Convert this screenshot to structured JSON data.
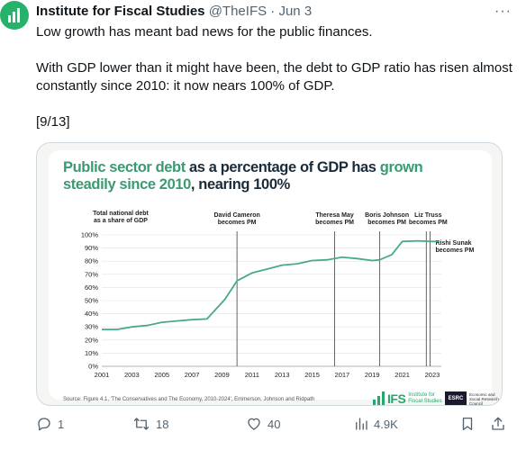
{
  "tweet": {
    "author_name": "Institute for Fiscal Studies",
    "handle": "@TheIFS",
    "separator": "·",
    "date": "Jun 3",
    "more_label": "···",
    "text_line1": "Low growth has meant bad news for the public finances.",
    "text_line2": "With GDP lower than it might have been, the debt to GDP ratio has risen almost constantly since 2010: it now nears 100% of GDP.",
    "text_line3": "[9/13]"
  },
  "card": {
    "title_part1": "Public sector debt",
    "title_part2": " as a percentage of GDP has ",
    "title_part3": "grown steadily since 2010",
    "title_part4": ", nearing 100%",
    "source": "Source: Figure 4.1, 'The Conservatives and The Economy, 2010-2024', Emmerson, Johnson and Ridpath",
    "ifs_logo_word": "IFS",
    "ifs_logo_sub1": "Institute for",
    "ifs_logo_sub2": "Fiscal Studies",
    "esrc_logo_word": "ESRC",
    "esrc_logo_sub": "Economic and Social Research Council"
  },
  "chart_data": {
    "type": "line",
    "title": "Public sector debt as a percentage of GDP has grown steadily since 2010, nearing 100%",
    "ylabel": "Total national debt as a share of GDP",
    "xlabel": "",
    "xlim": [
      2001,
      2023.6
    ],
    "ylim": [
      0,
      100
    ],
    "x_ticks": [
      "2001",
      "2003",
      "2005",
      "2007",
      "2009",
      "2011",
      "2013",
      "2015",
      "2017",
      "2019",
      "2021",
      "2023"
    ],
    "y_ticks": [
      "0%",
      "10%",
      "20%",
      "30%",
      "40%",
      "50%",
      "60%",
      "70%",
      "80%",
      "90%",
      "100%"
    ],
    "grid": true,
    "color": "#4aaa85",
    "series": [
      {
        "x": [
          2001,
          2002,
          2003,
          2004,
          2005,
          2006,
          2007,
          2008,
          2009.2,
          2010,
          2011,
          2012,
          2013,
          2014,
          2015,
          2016,
          2017,
          2018,
          2019,
          2019.5,
          2020.3,
          2021,
          2022,
          2023,
          2023.5
        ],
        "y": [
          28,
          28,
          30,
          31,
          33.5,
          34.5,
          35.5,
          36,
          51,
          65,
          71,
          74,
          77,
          78,
          80.5,
          81,
          83,
          82,
          80.5,
          81,
          85,
          95,
          95.5,
          95,
          95
        ]
      }
    ],
    "annotations": [
      {
        "x": 2010,
        "label_line1": "David Cameron",
        "label_line2": "becomes PM"
      },
      {
        "x": 2016.5,
        "label_line1": "Theresa May",
        "label_line2": "becomes PM"
      },
      {
        "x": 2019.5,
        "label_line1": "Boris Johnson",
        "label_line2": "becomes PM"
      },
      {
        "x": 2022.6,
        "label_line1": "Liz Truss",
        "label_line2": "becomes PM"
      },
      {
        "x": 2022.85,
        "label_line1": "Rishi Sunak",
        "label_line2": "becomes PM"
      }
    ]
  },
  "actions": {
    "reply_count": "1",
    "retweet_count": "18",
    "like_count": "40",
    "views_count": "4.9K"
  },
  "colors": {
    "green": "#27a86b",
    "text": "#0f1419",
    "muted": "#536471"
  },
  "icons": {
    "avatar": "ifs-bars-logo",
    "reply": "reply-bubble-icon",
    "retweet": "retweet-arrows-icon",
    "like": "heart-icon",
    "views": "bar-chart-icon",
    "bookmark": "bookmark-icon",
    "share": "share-icon"
  }
}
